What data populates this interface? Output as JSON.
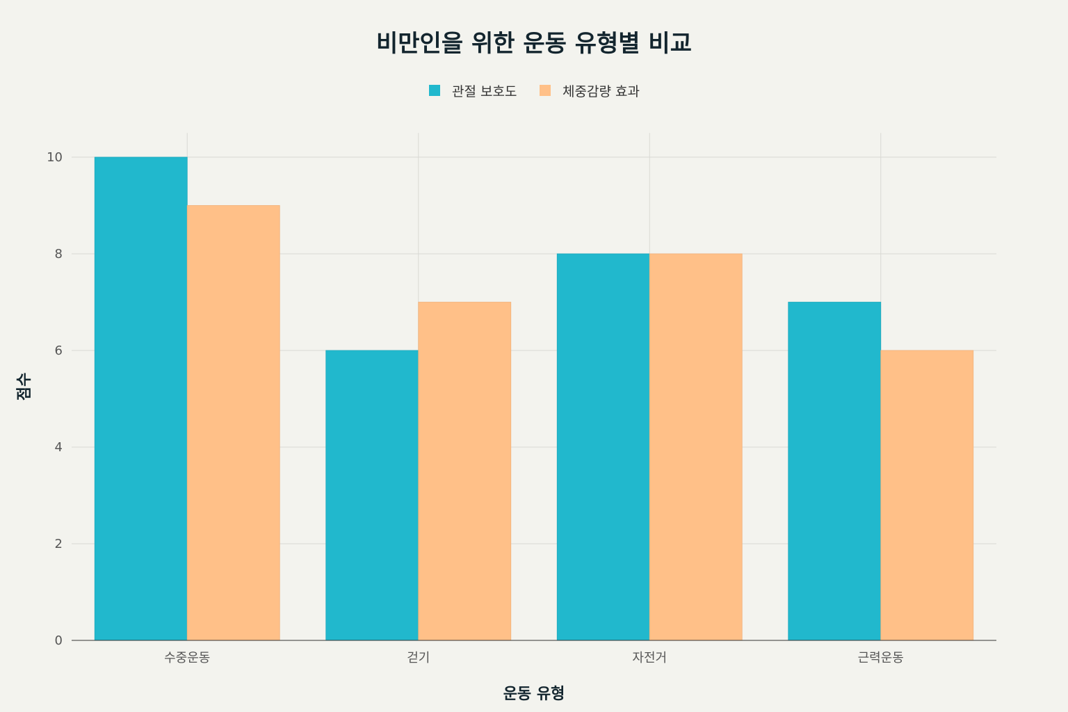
{
  "chart_data": {
    "type": "bar",
    "title": "비만인을 위한 운동 유형별 비교",
    "xlabel": "운동 유형",
    "ylabel": "점수",
    "categories": [
      "수중운동",
      "걷기",
      "자전거",
      "근력운동"
    ],
    "series": [
      {
        "name": "관절 보호도",
        "values": [
          10,
          6,
          8,
          7
        ],
        "color": "#21b8cd"
      },
      {
        "name": "체중감량 효과",
        "values": [
          9,
          7,
          8,
          6
        ],
        "color": "#ffc088"
      }
    ],
    "ylim": [
      0,
      10.5
    ],
    "yticks": [
      0,
      2,
      4,
      6,
      8,
      10
    ],
    "grid": true,
    "legend_position": "top-center"
  }
}
